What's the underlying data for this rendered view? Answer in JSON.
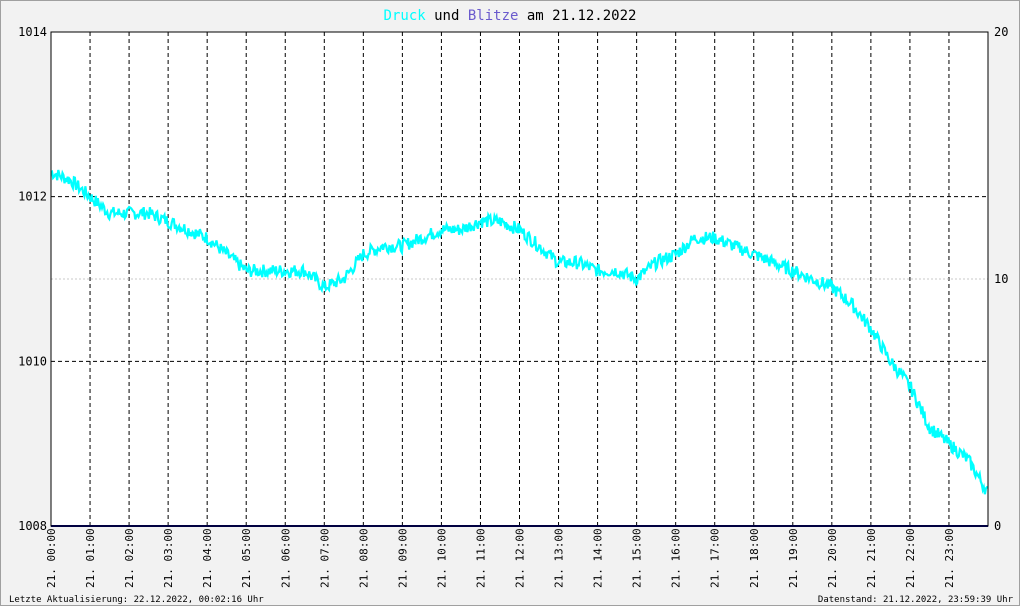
{
  "title": {
    "part1": "Druck",
    "part2": " und ",
    "part3": "Blitze",
    "part4": " am 21.12.2022"
  },
  "footer": {
    "left": "Letzte Aktualisierung: 22.12.2022, 00:02:16 Uhr",
    "right": "Datenstand: 21.12.2022, 23:59:39 Uhr"
  },
  "colors": {
    "druck": "#00ffff",
    "blitze": "#6a5acd",
    "baseline": "#000080",
    "grid": "#000000",
    "grid_minor": "#c8c8c8",
    "background": "#ffffff"
  },
  "chart_data": {
    "type": "line",
    "title": "Druck und Blitze am 21.12.2022",
    "x_unit": "hour of day",
    "xlim": [
      0,
      24
    ],
    "xtick_labels": [
      "21. 00:00",
      "21. 01:00",
      "21. 02:00",
      "21. 03:00",
      "21. 04:00",
      "21. 05:00",
      "21. 06:00",
      "21. 07:00",
      "21. 08:00",
      "21. 09:00",
      "21. 10:00",
      "21. 11:00",
      "21. 12:00",
      "21. 13:00",
      "21. 14:00",
      "21. 15:00",
      "21. 16:00",
      "21. 17:00",
      "21. 18:00",
      "21. 19:00",
      "21. 20:00",
      "21. 21:00",
      "21. 22:00",
      "21. 23:00"
    ],
    "y_left": {
      "ylim": [
        1008,
        1014
      ],
      "ticks": [
        1008,
        1010,
        1012,
        1014
      ]
    },
    "y_right": {
      "ylim": [
        0,
        20
      ],
      "ticks": [
        0,
        10,
        20
      ]
    },
    "grid": true,
    "series": [
      {
        "name": "Druck",
        "axis": "left",
        "x": [
          0,
          0.5,
          1,
          1.5,
          2,
          2.5,
          3,
          3.5,
          4,
          4.5,
          5,
          5.5,
          6,
          6.5,
          7,
          7.5,
          8,
          8.5,
          9,
          9.5,
          10,
          10.5,
          11,
          11.5,
          12,
          12.5,
          13,
          13.5,
          14,
          14.5,
          15,
          15.5,
          16,
          16.5,
          17,
          17.5,
          18,
          18.5,
          19,
          19.5,
          20,
          20.5,
          21,
          21.5,
          22,
          22.5,
          23,
          23.5,
          24
        ],
        "values": [
          1012.3,
          1012.2,
          1012.0,
          1011.8,
          1011.8,
          1011.8,
          1011.7,
          1011.6,
          1011.5,
          1011.3,
          1011.1,
          1011.1,
          1011.1,
          1011.1,
          1010.9,
          1011.0,
          1011.3,
          1011.4,
          1011.4,
          1011.5,
          1011.6,
          1011.6,
          1011.7,
          1011.7,
          1011.6,
          1011.4,
          1011.2,
          1011.2,
          1011.1,
          1011.1,
          1011.0,
          1011.2,
          1011.3,
          1011.5,
          1011.5,
          1011.4,
          1011.3,
          1011.2,
          1011.1,
          1011.0,
          1010.9,
          1010.7,
          1010.4,
          1010.0,
          1009.7,
          1009.2,
          1009.0,
          1008.8,
          1008.4
        ]
      },
      {
        "name": "Blitze",
        "axis": "right",
        "x": [
          0,
          24
        ],
        "values": [
          0,
          0
        ]
      }
    ]
  }
}
